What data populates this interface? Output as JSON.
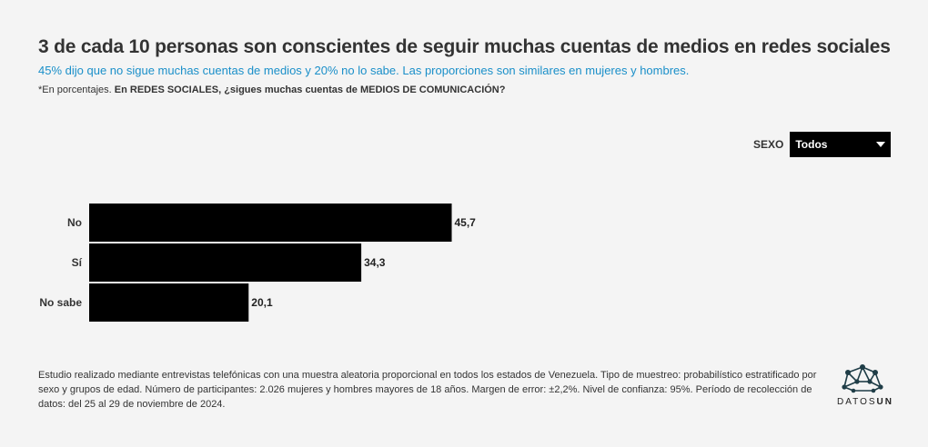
{
  "header": {
    "title": "3 de cada 10 personas son conscientes de seguir muchas cuentas de medios en redes sociales",
    "subtitle": "45% dijo que no sigue muchas cuentas de medios y 20% no lo sabe. Las proporciones son similares en mujeres y hombres.",
    "note_prefix": "*En porcentajes.",
    "note_question": "En REDES SOCIALES, ¿sigues muchas cuentas de MEDIOS DE COMUNICACIÓN?"
  },
  "filter": {
    "label": "SEXO",
    "selected": "Todos"
  },
  "chart_data": {
    "type": "bar",
    "orientation": "horizontal",
    "categories": [
      "No",
      "Sí",
      "No sabe"
    ],
    "values": [
      45.7,
      34.3,
      20.1
    ],
    "value_labels": [
      "45,7",
      "34,3",
      "20,1"
    ],
    "xlim": [
      0,
      100
    ],
    "bar_color": "#000000"
  },
  "footer": {
    "text": "Estudio realizado mediante entrevistas telefónicas con una muestra aleatoria proporcional en todos los estados de Venezuela. Tipo de muestreo: probabilístico estratificado por sexo y grupos de edad. Número de participantes: 2.026 mujeres y hombres mayores de 18 años. Margen de error: ±2,2%. Nivel de confianza: 95%. Período de recolección de datos: del 25 al 29 de noviembre de 2024."
  },
  "logo": {
    "text_a": "DATOS",
    "text_b": "UN"
  },
  "colors": {
    "background": "#f4f4f4",
    "accent": "#1a8fc9",
    "bar": "#000000"
  }
}
